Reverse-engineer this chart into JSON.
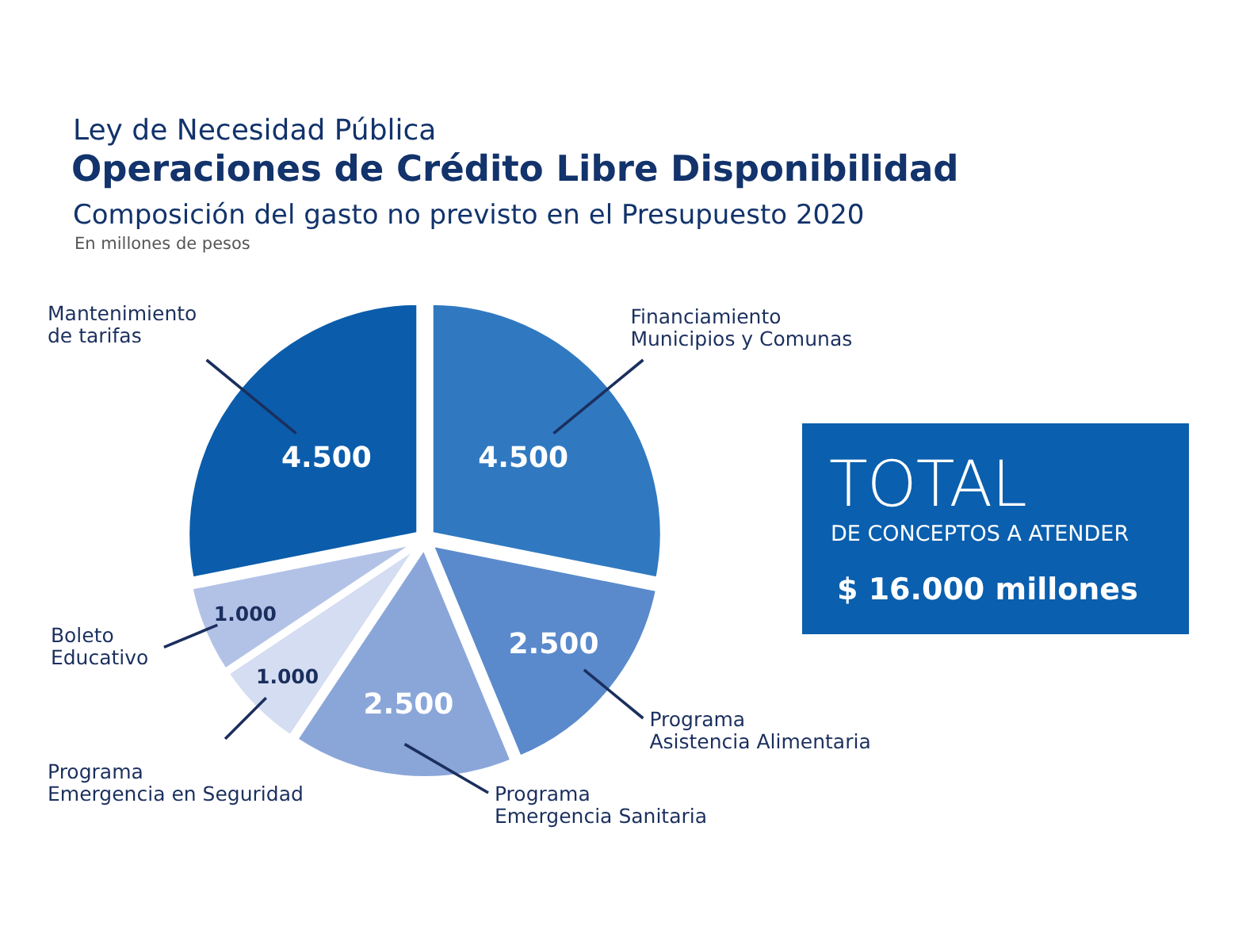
{
  "chart_data": [
    {
      "type": "pie",
      "title": "Operaciones de Crédito Libre Disponibilidad",
      "subtitle": "Composición del gasto no previsto en el Presupuesto 2020",
      "annotations": [
        "Ley de Necesidad Pública",
        "En millones de pesos"
      ],
      "categories": [
        "Financiamiento\nMunicipios y Comunas",
        "Programa\nAsistencia Alimentaria",
        "Programa\nEmergencia Sanitaria",
        "Programa\nEmergencia en Seguridad",
        "Boleto\nEducativo",
        "Mantenimiento\nde tarifas"
      ],
      "values": [
        4500,
        2500,
        2500,
        1000,
        1000,
        4500
      ],
      "colors": [
        "#3079c1",
        "#5a8acb",
        "#8aa6d9",
        "#d4ddf1",
        "#b2c2e7",
        "#0b5dab"
      ],
      "value_labels": [
        "4.500",
        "2.500",
        "2.500",
        "1.000",
        "1.000",
        "4.500"
      ]
    },
    {
      "type": "other",
      "title": "TOTAL",
      "subtitle": "DE CONCEPTOS A ATENDER",
      "annotations": [
        "$ 16.000 millones"
      ],
      "color": "#0a5fae"
    }
  ]
}
